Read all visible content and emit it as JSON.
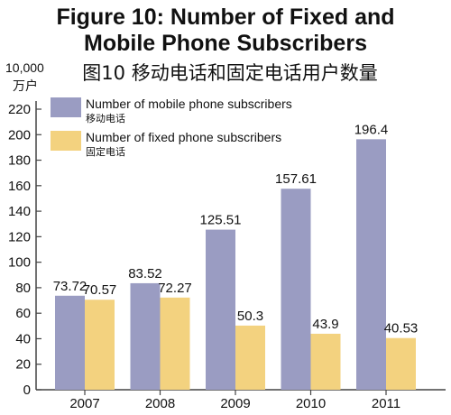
{
  "chart_data": {
    "type": "bar",
    "title": "Figure 10: Number of Fixed and Mobile Phone Subscribers",
    "title_lines": [
      "Figure 10: Number of Fixed and",
      "Mobile Phone Subscribers"
    ],
    "subtitle": "图10  移动电话和固定电话用户数量",
    "ylabel": "10,000",
    "ylabel_cn": "万户",
    "xlabel": "",
    "ylim": [
      0,
      220
    ],
    "yticks": [
      0,
      20,
      40,
      60,
      80,
      100,
      120,
      140,
      160,
      180,
      200,
      220
    ],
    "grid": false,
    "legend_position": "top-left",
    "categories": [
      "2007",
      "2008",
      "2009",
      "2010",
      "2011"
    ],
    "series": [
      {
        "name": "Number of mobile phone subscribers",
        "name_cn": "移动电话",
        "color": "#9a9cc2",
        "values": [
          73.72,
          83.52,
          125.51,
          157.61,
          196.4
        ]
      },
      {
        "name": "Number of fixed phone subscribers",
        "name_cn": "固定电话",
        "color": "#f3d27f",
        "values": [
          70.57,
          72.27,
          50.3,
          43.9,
          40.53
        ]
      }
    ]
  }
}
